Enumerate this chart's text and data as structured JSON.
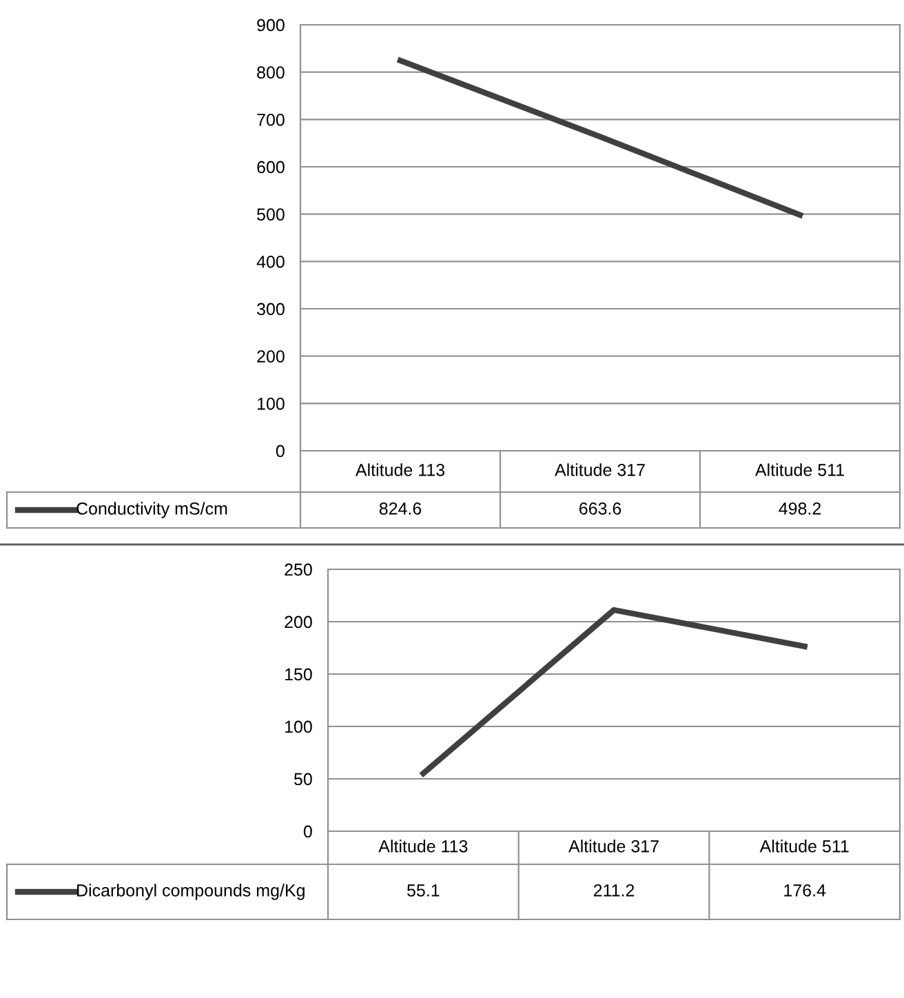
{
  "chart_data": [
    {
      "type": "line",
      "categories": [
        "Altitude 113",
        "Altitude 317",
        "Altitude 511"
      ],
      "series": [
        {
          "name": "Conductivity mS/cm",
          "color": "#404040",
          "values": [
            824.6,
            663.6,
            498.2
          ]
        }
      ],
      "ylim": [
        0,
        900
      ],
      "yticks": [
        0,
        100,
        200,
        300,
        400,
        500,
        600,
        700,
        800,
        900
      ],
      "grid": "y",
      "data_labels": true,
      "legend": "bottom"
    },
    {
      "type": "line",
      "categories": [
        "Altitude 113",
        "Altitude 317",
        "Altitude 511"
      ],
      "series": [
        {
          "name": "Dicarbonyl compounds mg/Kg",
          "color": "#404040",
          "values": [
            55.1,
            211.2,
            176.4
          ]
        }
      ],
      "ylim": [
        0,
        250
      ],
      "yticks": [
        0,
        50,
        100,
        150,
        200,
        250
      ],
      "grid": "y",
      "data_labels": true,
      "legend": "bottom"
    }
  ]
}
